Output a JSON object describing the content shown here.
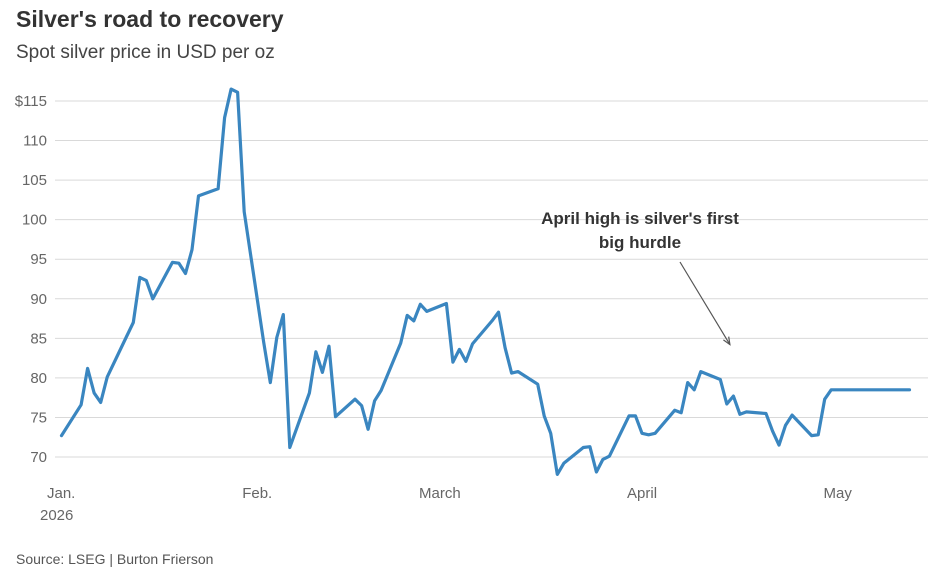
{
  "header": {
    "title": "Silver's road to recovery",
    "subtitle": "Spot silver price in USD per oz"
  },
  "footer": {
    "source": "Source: LSEG | Burton Frierson"
  },
  "colors": {
    "line": "#3a86c0",
    "grid": "#d9d9d9",
    "text": "#333333",
    "annotation_arrow": "#555555"
  },
  "chart_data": {
    "type": "line",
    "title": "Silver's road to recovery",
    "subtitle": "Spot silver price in USD per oz",
    "xlabel": "",
    "ylabel": "",
    "ylim": [
      67,
      117
    ],
    "xlim": [
      "2026-01-01",
      "2026-05-13"
    ],
    "y_ticks": [
      70,
      75,
      80,
      85,
      90,
      95,
      100,
      105,
      110,
      115
    ],
    "y_tick_labels": [
      "70",
      "75",
      "80",
      "85",
      "90",
      "95",
      "100",
      "105",
      "110",
      "$115"
    ],
    "x_ticks": [
      {
        "date": "2026-01-01",
        "label": "Jan.",
        "sublabel": "2026"
      },
      {
        "date": "2026-02-01",
        "label": "Feb.",
        "sublabel": ""
      },
      {
        "date": "2026-03-01",
        "label": "March",
        "sublabel": ""
      },
      {
        "date": "2026-04-01",
        "label": "April",
        "sublabel": ""
      },
      {
        "date": "2026-05-01",
        "label": "May",
        "sublabel": ""
      }
    ],
    "grid": true,
    "legend": "none",
    "annotations": [
      {
        "text_lines": [
          "April high is silver's first",
          "big hurdle"
        ],
        "target_date": "2026-04-16",
        "target_value": 80.8
      }
    ],
    "series": [
      {
        "x": [
          "2026-01-02",
          "2026-01-05",
          "2026-01-06",
          "2026-01-07",
          "2026-01-08",
          "2026-01-09",
          "2026-01-12",
          "2026-01-13",
          "2026-01-14",
          "2026-01-15",
          "2026-01-16",
          "2026-01-19",
          "2026-01-20",
          "2026-01-21",
          "2026-01-22",
          "2026-01-23",
          "2026-01-26",
          "2026-01-27",
          "2026-01-28",
          "2026-01-29",
          "2026-01-30",
          "2026-02-02",
          "2026-02-03",
          "2026-02-04",
          "2026-02-05",
          "2026-02-06",
          "2026-02-09",
          "2026-02-10",
          "2026-02-11",
          "2026-02-12",
          "2026-02-13",
          "2026-02-16",
          "2026-02-17",
          "2026-02-18",
          "2026-02-19",
          "2026-02-20",
          "2026-02-23",
          "2026-02-24",
          "2026-02-25",
          "2026-02-26",
          "2026-02-27",
          "2026-03-02",
          "2026-03-03",
          "2026-03-04",
          "2026-03-05",
          "2026-03-06",
          "2026-03-09",
          "2026-03-10",
          "2026-03-11",
          "2026-03-12",
          "2026-03-13",
          "2026-03-16",
          "2026-03-17",
          "2026-03-18",
          "2026-03-19",
          "2026-03-20",
          "2026-03-23",
          "2026-03-24",
          "2026-03-25",
          "2026-03-26",
          "2026-03-27",
          "2026-03-30",
          "2026-03-31",
          "2026-04-01",
          "2026-04-02",
          "2026-04-03",
          "2026-04-06",
          "2026-04-07",
          "2026-04-08",
          "2026-04-09",
          "2026-04-10",
          "2026-04-13",
          "2026-04-14",
          "2026-04-15",
          "2026-04-16",
          "2026-04-17",
          "2026-04-20",
          "2026-04-21",
          "2026-04-22",
          "2026-04-23",
          "2026-04-24",
          "2026-04-27",
          "2026-04-28",
          "2026-04-29",
          "2026-04-30",
          "2026-05-01",
          "2026-05-04",
          "2026-05-05",
          "2026-05-06",
          "2026-05-07",
          "2026-05-08",
          "2026-05-11",
          "2026-05-12"
        ],
        "values": [
          72.7,
          76.6,
          81.2,
          78.1,
          76.9,
          80.1,
          85.3,
          87.0,
          92.7,
          92.3,
          90.0,
          94.6,
          94.5,
          93.2,
          96.2,
          103.0,
          103.9,
          112.9,
          116.5,
          116.1,
          101.0,
          84.5,
          79.4,
          85.1,
          88.0,
          71.2,
          78.1,
          83.3,
          80.7,
          84.0,
          75.1,
          77.3,
          76.5,
          73.5,
          77.1,
          78.4,
          84.4,
          87.9,
          87.2,
          89.3,
          88.4,
          89.4,
          82.0,
          83.6,
          82.1,
          84.3,
          87.2,
          88.3,
          83.8,
          80.6,
          80.8,
          79.2,
          75.2,
          73.0,
          67.8,
          69.2,
          71.2,
          71.3,
          68.1,
          69.7,
          70.1,
          75.2,
          75.2,
          73.0,
          72.8,
          73.0,
          75.9,
          75.6,
          79.4,
          78.5,
          80.8,
          79.8,
          76.7,
          77.7,
          75.4,
          75.7,
          75.5,
          73.3,
          71.5,
          74.0,
          75.3,
          72.7,
          72.8,
          77.3,
          78.5,
          78.5,
          78.5,
          78.5,
          78.5,
          78.5,
          78.5,
          78.5,
          78.5
        ]
      }
    ]
  }
}
